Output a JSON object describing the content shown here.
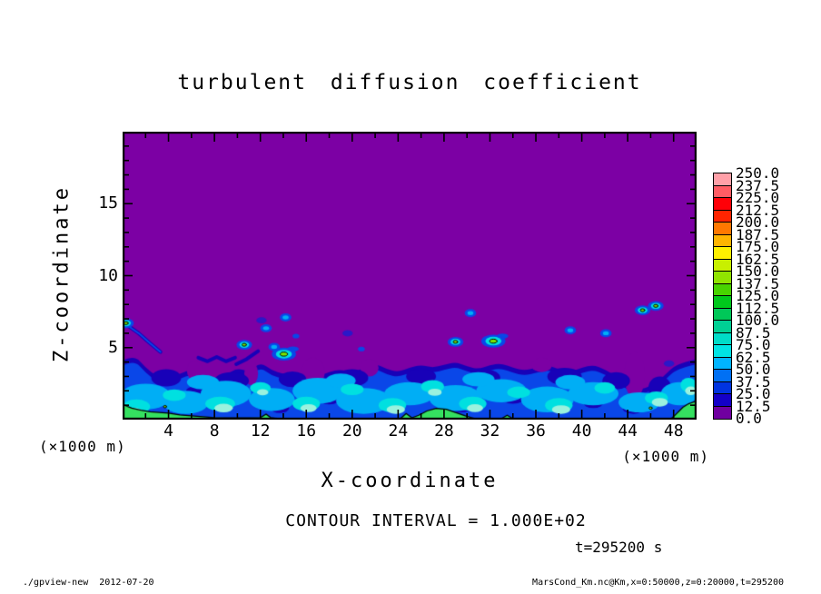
{
  "chart_data": {
    "type": "filled-contour",
    "title": "turbulent diffusion coefficient",
    "xlabel": "X-coordinate",
    "ylabel": "Z-coordinate",
    "x_unit_left": "(×1000 m)",
    "x_unit_right": "(×1000 m)",
    "contour_note": "CONTOUR INTERVAL = 1.000E+02",
    "time_label": "t=295200 s",
    "xlim": [
      0,
      50
    ],
    "ylim": [
      0,
      20
    ],
    "x_major_ticks": [
      4,
      8,
      12,
      16,
      20,
      24,
      28,
      32,
      36,
      40,
      44,
      48
    ],
    "x_minor_step": 2,
    "y_major_ticks": [
      5,
      10,
      15
    ],
    "y_minor_step": 1,
    "colorbar": {
      "labels_top_to_bottom": [
        "250.0",
        "237.5",
        "225.0",
        "212.5",
        "200.0",
        "187.5",
        "175.0",
        "162.5",
        "150.0",
        "137.5",
        "125.0",
        "112.5",
        "100.0",
        "87.5",
        "75.0",
        "62.5",
        "50.0",
        "37.5",
        "25.0",
        "12.5",
        "0.0"
      ],
      "colors_bottom_to_top": [
        "#7000A0",
        "#1400C8",
        "#0034E0",
        "#0070F4",
        "#00B4FF",
        "#00E4E4",
        "#00DCC8",
        "#00D094",
        "#00C858",
        "#00C81C",
        "#48D400",
        "#90E400",
        "#C8F000",
        "#FFF000",
        "#FFB400",
        "#FF7800",
        "#FF2400",
        "#FF0008",
        "#FF5C64",
        "#FFA0A8"
      ]
    },
    "field": {
      "colors": {
        "purple": "#7C00A4",
        "navy": "#1801B8",
        "blue": "#0A47E8",
        "cyan": "#00AEF5",
        "bcyan": "#00E0E0",
        "pale": "#9AF2DE",
        "green": "#35E060",
        "center": "#7CE800",
        "faint": "#2A18C8"
      },
      "band_top_profile": [
        [
          0,
          4.1
        ],
        [
          1,
          4.5
        ],
        [
          2,
          3.6
        ],
        [
          3,
          3.0
        ],
        [
          4,
          2.8
        ],
        [
          5,
          3.2
        ],
        [
          6,
          3.5
        ],
        [
          7,
          2.9
        ],
        [
          8,
          2.7
        ],
        [
          9,
          3.1
        ],
        [
          10,
          3.6
        ],
        [
          11,
          3.3
        ],
        [
          12,
          4.0
        ],
        [
          13,
          3.4
        ],
        [
          14,
          3.2
        ],
        [
          15,
          2.9
        ],
        [
          16,
          2.6
        ],
        [
          17,
          3.0
        ],
        [
          18,
          3.3
        ],
        [
          19,
          3.5
        ],
        [
          20,
          3.2
        ],
        [
          21,
          3.6
        ],
        [
          22,
          3.9
        ],
        [
          23,
          3.5
        ],
        [
          24,
          3.3
        ],
        [
          25,
          3.6
        ],
        [
          26,
          3.8
        ],
        [
          27,
          3.6
        ],
        [
          28,
          3.8
        ],
        [
          29,
          4.0
        ],
        [
          30,
          3.7
        ],
        [
          31,
          3.5
        ],
        [
          32,
          3.8
        ],
        [
          33,
          3.9
        ],
        [
          34,
          3.6
        ],
        [
          35,
          3.4
        ],
        [
          36,
          3.6
        ],
        [
          37,
          3.8
        ],
        [
          38,
          3.5
        ],
        [
          39,
          3.3
        ],
        [
          40,
          3.6
        ],
        [
          41,
          3.8
        ],
        [
          42,
          3.5
        ],
        [
          43,
          3.0
        ],
        [
          44,
          2.4
        ],
        [
          45,
          2.1
        ],
        [
          46,
          2.3
        ],
        [
          47,
          2.9
        ],
        [
          48,
          3.7
        ],
        [
          49,
          4.0
        ],
        [
          50,
          4.2
        ]
      ],
      "blue_layer_offset": -0.35,
      "purple_wedges": [
        [
          44.6,
          3.1,
          0.9,
          1.6
        ],
        [
          16.6,
          3.3,
          1.0,
          1.0
        ],
        [
          11.2,
          3.2,
          0.6,
          0.8
        ],
        [
          21.5,
          3.6,
          0.8,
          0.6
        ],
        [
          6.3,
          3.4,
          0.7,
          0.7
        ],
        [
          36.5,
          3.8,
          0.9,
          0.5
        ]
      ],
      "navy_bumps": [
        [
          3.8,
          2.9,
          1.3,
          0.6
        ],
        [
          9.5,
          2.7,
          1.5,
          0.6
        ],
        [
          14.8,
          2.8,
          1.2,
          0.55
        ],
        [
          20,
          2.9,
          1.4,
          0.6
        ],
        [
          26,
          3.0,
          1.3,
          0.55
        ],
        [
          31.5,
          2.9,
          1.4,
          0.6
        ],
        [
          38.5,
          3.0,
          1.5,
          0.6
        ],
        [
          43,
          2.7,
          1.2,
          0.6
        ],
        [
          46.8,
          2.2,
          1.0,
          0.8
        ],
        [
          24,
          1.9,
          1.1,
          0.5
        ],
        [
          18,
          1.5,
          1.0,
          0.45
        ],
        [
          6.5,
          1.9,
          1.0,
          0.45
        ],
        [
          34,
          1.6,
          1.1,
          0.5
        ],
        [
          41,
          1.2,
          0.9,
          0.4
        ],
        [
          29.5,
          0.9,
          0.9,
          0.4
        ],
        [
          13.7,
          0.8,
          0.8,
          0.35
        ],
        [
          44.5,
          0.9,
          1.0,
          0.5
        ]
      ],
      "cyan_patches": [
        [
          2,
          1.6,
          2.2,
          0.9
        ],
        [
          5.5,
          1.2,
          2.0,
          0.8
        ],
        [
          9,
          1.8,
          2.2,
          0.9
        ],
        [
          13,
          1.4,
          2.0,
          0.8
        ],
        [
          17,
          2.0,
          2.2,
          0.9
        ],
        [
          21,
          1.3,
          2.4,
          0.9
        ],
        [
          25,
          1.8,
          2.2,
          0.8
        ],
        [
          29,
          1.5,
          2.3,
          0.9
        ],
        [
          33,
          2.0,
          2.2,
          0.8
        ],
        [
          37,
          1.4,
          2.3,
          0.9
        ],
        [
          41,
          1.8,
          2.2,
          0.8
        ],
        [
          45,
          1.2,
          1.8,
          0.7
        ],
        [
          48.5,
          1.8,
          1.6,
          0.8
        ],
        [
          7,
          2.6,
          1.4,
          0.5
        ],
        [
          19,
          2.7,
          1.3,
          0.5
        ],
        [
          31,
          2.8,
          1.4,
          0.5
        ],
        [
          39,
          2.6,
          1.3,
          0.5
        ]
      ],
      "bright_cyan_patches": [
        [
          1.2,
          0.9,
          1.2,
          0.5
        ],
        [
          4.5,
          1.7,
          1.0,
          0.4
        ],
        [
          8.5,
          1.1,
          1.3,
          0.5
        ],
        [
          12,
          2.2,
          0.9,
          0.4
        ],
        [
          16,
          1.1,
          1.2,
          0.5
        ],
        [
          20,
          2.1,
          1.0,
          0.4
        ],
        [
          23.5,
          1.0,
          1.2,
          0.5
        ],
        [
          27,
          2.3,
          1.0,
          0.45
        ],
        [
          30.5,
          1.1,
          1.2,
          0.5
        ],
        [
          34.5,
          1.9,
          1.0,
          0.4
        ],
        [
          38,
          1.0,
          1.2,
          0.5
        ],
        [
          42,
          2.2,
          0.9,
          0.4
        ],
        [
          46.5,
          1.5,
          1.0,
          0.45
        ],
        [
          49.3,
          2.4,
          0.7,
          0.5
        ]
      ],
      "pale_patches": [
        [
          1,
          0.5,
          0.8,
          0.3
        ],
        [
          8.8,
          0.8,
          0.8,
          0.3
        ],
        [
          16.2,
          0.8,
          0.7,
          0.28
        ],
        [
          23.8,
          0.7,
          0.8,
          0.3
        ],
        [
          30.7,
          0.8,
          0.7,
          0.28
        ],
        [
          38.2,
          0.7,
          0.8,
          0.3
        ],
        [
          46.8,
          1.2,
          0.7,
          0.3
        ],
        [
          27.2,
          1.9,
          0.6,
          0.25
        ],
        [
          12.2,
          1.9,
          0.5,
          0.22
        ],
        [
          49.5,
          2.0,
          0.5,
          0.3
        ]
      ],
      "green_segments": [
        [
          [
            0,
            1.05
          ],
          [
            0.8,
            0.8
          ],
          [
            1.6,
            0.65
          ],
          [
            2.4,
            0.55
          ],
          [
            3.2,
            0.5
          ],
          [
            4,
            0.45
          ],
          [
            5,
            0.32
          ],
          [
            6,
            0.26
          ],
          [
            7,
            0.2
          ],
          [
            8,
            0.14
          ],
          [
            9,
            0.12
          ],
          [
            10,
            0.12
          ],
          [
            11,
            0.12
          ],
          [
            12,
            0.14
          ],
          [
            12.5,
            0.38
          ],
          [
            12.9,
            0.14
          ],
          [
            13.4,
            0.08
          ]
        ],
        [
          [
            24.2,
            0.06
          ],
          [
            24.7,
            0.42
          ],
          [
            25.2,
            0.12
          ],
          [
            25.8,
            0.3
          ],
          [
            26.5,
            0.6
          ],
          [
            27.3,
            0.78
          ],
          [
            28.2,
            0.72
          ],
          [
            29,
            0.5
          ],
          [
            29.8,
            0.28
          ],
          [
            30.6,
            0.08
          ]
        ],
        [
          [
            33,
            0.06
          ],
          [
            33.5,
            0.3
          ],
          [
            34,
            0.06
          ]
        ],
        [
          [
            47.8,
            0.06
          ],
          [
            48.3,
            0.45
          ],
          [
            48.8,
            0.85
          ],
          [
            49.3,
            1.1
          ],
          [
            50,
            1.3
          ]
        ]
      ],
      "streaks": [
        [
          [
            0.5,
            6.5
          ],
          [
            1.4,
            6.0
          ],
          [
            2.4,
            5.3
          ],
          [
            3.3,
            4.7
          ]
        ],
        [
          [
            6.6,
            4.3
          ],
          [
            7.4,
            4.05
          ],
          [
            8.2,
            4.35
          ],
          [
            9.0,
            4.05
          ],
          [
            9.8,
            4.3
          ]
        ],
        [
          [
            9.9,
            3.85
          ],
          [
            10.8,
            4.2
          ],
          [
            11.8,
            4.75
          ]
        ]
      ],
      "blobs": [
        [
          0.3,
          6.7,
          "ring"
        ],
        [
          3.7,
          0.9,
          "tinyring"
        ],
        [
          10.6,
          5.2,
          "ring"
        ],
        [
          12.1,
          6.9,
          "faint"
        ],
        [
          12.5,
          6.35,
          "dot"
        ],
        [
          13.2,
          5.05,
          "dot"
        ],
        [
          14.05,
          4.55,
          "ringbig"
        ],
        [
          14.2,
          7.1,
          "dot"
        ],
        [
          15.1,
          5.8,
          "tiny"
        ],
        [
          19.6,
          6.0,
          "faint"
        ],
        [
          20.8,
          4.9,
          "tiny"
        ],
        [
          29.0,
          5.4,
          "ring"
        ],
        [
          30.3,
          7.4,
          "dot"
        ],
        [
          32.3,
          5.45,
          "ringbig"
        ],
        [
          39.0,
          6.2,
          "dot"
        ],
        [
          42.1,
          6.0,
          "dot"
        ],
        [
          45.3,
          7.6,
          "ring"
        ],
        [
          46.45,
          7.9,
          "ring"
        ],
        [
          47.6,
          3.9,
          "faint"
        ],
        [
          46.0,
          0.8,
          "tinyring"
        ]
      ]
    }
  },
  "footer": {
    "left": "./gpview-new  2012-07-20",
    "right": "MarsCond_Km.nc@Km,x=0:50000,z=0:20000,t=295200"
  }
}
